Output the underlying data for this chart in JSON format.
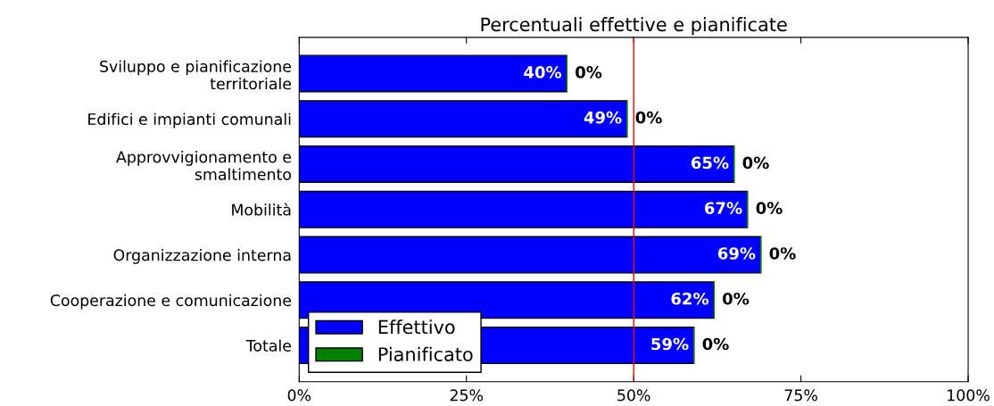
{
  "chart_data": {
    "type": "bar",
    "orientation": "horizontal",
    "stacked": true,
    "title": "Percentuali effettive e pianificate",
    "categories": [
      "Sviluppo e pianificazione\nterritoriale",
      "Edifici e impianti comunali",
      "Approvvigionamento e\nsmaltimento",
      "Mobilità",
      "Organizzazione interna",
      "Cooperazione e comunicazione",
      "Totale"
    ],
    "series": [
      {
        "name": "Effettivo",
        "color": "#0000ff",
        "values": [
          40,
          49,
          65,
          67,
          69,
          62,
          59
        ],
        "value_labels": [
          "40%",
          "49%",
          "65%",
          "67%",
          "69%",
          "62%",
          "59%"
        ]
      },
      {
        "name": "Pianificato",
        "color": "#008000",
        "values": [
          0,
          0,
          0,
          0,
          0,
          0,
          0
        ],
        "value_labels": [
          "0%",
          "0%",
          "0%",
          "0%",
          "0%",
          "0%",
          "0%"
        ]
      }
    ],
    "xlim": [
      0,
      100
    ],
    "xticks": [
      {
        "value": 0,
        "label": "0%"
      },
      {
        "value": 25,
        "label": "25%"
      },
      {
        "value": 50,
        "label": "50%"
      },
      {
        "value": 75,
        "label": "75%"
      },
      {
        "value": 100,
        "label": "100%"
      }
    ],
    "ref_lines": [
      {
        "axis": "x",
        "value": 50,
        "color": "#ff0000"
      }
    ],
    "legend": "bottom left",
    "grid": false
  }
}
